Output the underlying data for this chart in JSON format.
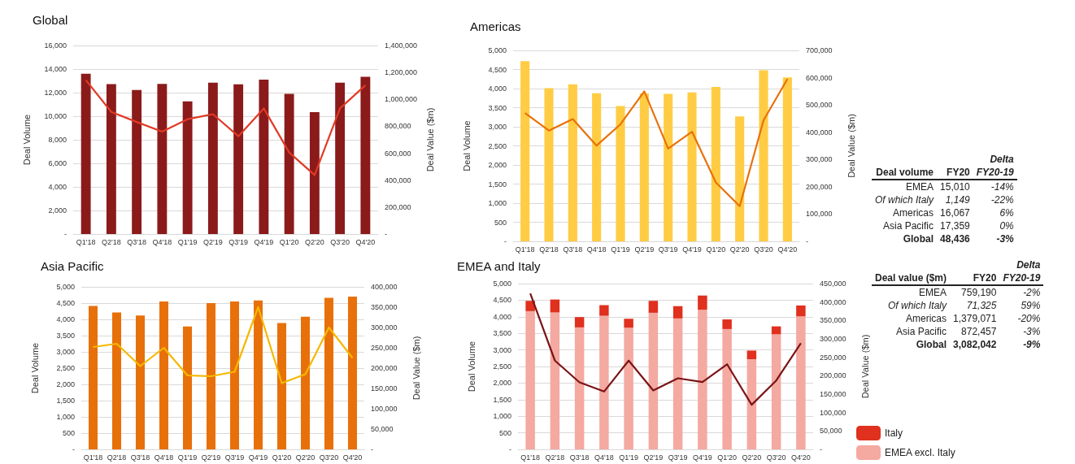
{
  "chart_data": [
    {
      "type": "bar",
      "title": "Global",
      "categories": [
        "Q1'18",
        "Q2'18",
        "Q3'18",
        "Q4'18",
        "Q1'19",
        "Q2'19",
        "Q3'19",
        "Q4'19",
        "Q1'20",
        "Q2'20",
        "Q3'20",
        "Q4'20"
      ],
      "ylabel": "Deal Volume",
      "y2label": "Deal Value ($m)",
      "ylim": [
        0,
        16000
      ],
      "yticks": [
        {
          "value": 0,
          "label": "-"
        },
        {
          "value": 2000,
          "label": "2,000"
        },
        {
          "value": 4000,
          "label": "4,000"
        },
        {
          "value": 6000,
          "label": "6,000"
        },
        {
          "value": 8000,
          "label": "8,000"
        },
        {
          "value": 10000,
          "label": "10,000"
        },
        {
          "value": 12000,
          "label": "12,000"
        },
        {
          "value": 14000,
          "label": "14,000"
        },
        {
          "value": 16000,
          "label": "16,000"
        }
      ],
      "y2lim": [
        0,
        1400000
      ],
      "y2ticks": [
        {
          "value": 0,
          "label": "-"
        },
        {
          "value": 200000,
          "label": "200,000"
        },
        {
          "value": 400000,
          "label": "400,000"
        },
        {
          "value": 600000,
          "label": "600,000"
        },
        {
          "value": 800000,
          "label": "800,000"
        },
        {
          "value": 1000000,
          "label": "1,000,000"
        },
        {
          "value": 1200000,
          "label": "1,200,000"
        },
        {
          "value": 1400000,
          "label": "1,400,000"
        }
      ],
      "grid": "y",
      "legend": false,
      "series": [
        {
          "type": "bar",
          "color": "#8b1a1a",
          "values": [
            13600,
            12730,
            12220,
            12750,
            11260,
            12850,
            12700,
            13110,
            11890,
            10350,
            12850,
            13350
          ]
        },
        {
          "type": "line",
          "axis": "y2",
          "color": "#e03a26",
          "values": [
            1143000,
            907000,
            832000,
            760000,
            853000,
            890000,
            726000,
            933000,
            606000,
            438000,
            933000,
            1105000
          ]
        }
      ]
    },
    {
      "type": "bar",
      "title": "Americas",
      "categories": [
        "Q1'18",
        "Q2'18",
        "Q3'18",
        "Q4'18",
        "Q1'19",
        "Q2'19",
        "Q3'19",
        "Q4'19",
        "Q1'20",
        "Q2'20",
        "Q3'20",
        "Q4'20"
      ],
      "ylabel": "Deal Volume",
      "y2label": "Deal Value ($m)",
      "ylim": [
        0,
        5000
      ],
      "yticks": [
        {
          "value": 0,
          "label": "-"
        },
        {
          "value": 500,
          "label": "500"
        },
        {
          "value": 1000,
          "label": "1,000"
        },
        {
          "value": 1500,
          "label": "1,500"
        },
        {
          "value": 2000,
          "label": "2,000"
        },
        {
          "value": 2500,
          "label": "2,500"
        },
        {
          "value": 3000,
          "label": "3,000"
        },
        {
          "value": 3500,
          "label": "3,500"
        },
        {
          "value": 4000,
          "label": "4,000"
        },
        {
          "value": 4500,
          "label": "4,500"
        },
        {
          "value": 5000,
          "label": "5,000"
        }
      ],
      "y2lim": [
        0,
        700000
      ],
      "y2ticks": [
        {
          "value": 0,
          "label": "-"
        },
        {
          "value": 100000,
          "label": "100,000"
        },
        {
          "value": 200000,
          "label": "200,000"
        },
        {
          "value": 300000,
          "label": "300,000"
        },
        {
          "value": 400000,
          "label": "400,000"
        },
        {
          "value": 500000,
          "label": "500,000"
        },
        {
          "value": 600000,
          "label": "600,000"
        },
        {
          "value": 700000,
          "label": "700,000"
        }
      ],
      "grid": "y",
      "legend": false,
      "series": [
        {
          "type": "bar",
          "color": "#ffcc44",
          "values": [
            4720,
            4010,
            4110,
            3880,
            3540,
            3870,
            3860,
            3900,
            4040,
            3270,
            4480,
            4290
          ]
        },
        {
          "type": "line",
          "axis": "y2",
          "color": "#e8710a",
          "values": [
            470000,
            406000,
            448000,
            351000,
            429000,
            550000,
            340000,
            402000,
            216000,
            129000,
            444000,
            595000
          ]
        }
      ]
    },
    {
      "type": "bar",
      "title": "Asia Pacific",
      "categories": [
        "Q1'18",
        "Q2'18",
        "Q3'18",
        "Q4'18",
        "Q1'19",
        "Q2'19",
        "Q3'19",
        "Q4'19",
        "Q1'20",
        "Q2'20",
        "Q3'20",
        "Q4'20"
      ],
      "ylabel": "Deal Volume",
      "y2label": "Deal Value ($m)",
      "ylim": [
        0,
        5000
      ],
      "yticks": [
        {
          "value": 0,
          "label": "-"
        },
        {
          "value": 500,
          "label": "500"
        },
        {
          "value": 1000,
          "label": "1,000"
        },
        {
          "value": 1500,
          "label": "1,500"
        },
        {
          "value": 2000,
          "label": "2,000"
        },
        {
          "value": 2500,
          "label": "2,500"
        },
        {
          "value": 3000,
          "label": "3,000"
        },
        {
          "value": 3500,
          "label": "3,500"
        },
        {
          "value": 4000,
          "label": "4,000"
        },
        {
          "value": 4500,
          "label": "4,500"
        },
        {
          "value": 5000,
          "label": "5,000"
        }
      ],
      "y2lim": [
        0,
        400000
      ],
      "y2ticks": [
        {
          "value": 0,
          "label": "-"
        },
        {
          "value": 50000,
          "label": "50,000"
        },
        {
          "value": 100000,
          "label": "100,000"
        },
        {
          "value": 150000,
          "label": "150,000"
        },
        {
          "value": 200000,
          "label": "200,000"
        },
        {
          "value": 250000,
          "label": "250,000"
        },
        {
          "value": 300000,
          "label": "300,000"
        },
        {
          "value": 350000,
          "label": "350,000"
        },
        {
          "value": 400000,
          "label": "400,000"
        }
      ],
      "grid": "y",
      "legend": false,
      "series": [
        {
          "type": "bar",
          "color": "#e8700a",
          "values": [
            4410,
            4210,
            4120,
            4550,
            3780,
            4500,
            4550,
            4580,
            3890,
            4080,
            4660,
            4700
          ]
        },
        {
          "type": "line",
          "axis": "y2",
          "color": "#f5b800",
          "values": [
            252000,
            260000,
            205000,
            250000,
            182000,
            180000,
            191000,
            350000,
            163000,
            185000,
            300000,
            225000
          ]
        }
      ]
    },
    {
      "type": "bar",
      "title": "EMEA and Italy",
      "stacked": true,
      "categories": [
        "Q1'18",
        "Q2'18",
        "Q3'18",
        "Q4'18",
        "Q1'19",
        "Q2'19",
        "Q3'19",
        "Q4'19",
        "Q1'20",
        "Q2'20",
        "Q3'20",
        "Q4'20"
      ],
      "ylabel": "Deal Volume",
      "y2label": "Deal Value ($m)",
      "ylim": [
        0,
        5000
      ],
      "yticks": [
        {
          "value": 0,
          "label": "-"
        },
        {
          "value": 500,
          "label": "500"
        },
        {
          "value": 1000,
          "label": "1,000"
        },
        {
          "value": 1500,
          "label": "1,500"
        },
        {
          "value": 2000,
          "label": "2,000"
        },
        {
          "value": 2500,
          "label": "2,500"
        },
        {
          "value": 3000,
          "label": "3,000"
        },
        {
          "value": 3500,
          "label": "3,500"
        },
        {
          "value": 4000,
          "label": "4,000"
        },
        {
          "value": 4500,
          "label": "4,500"
        },
        {
          "value": 5000,
          "label": "5,000"
        }
      ],
      "y2lim": [
        0,
        450000
      ],
      "y2ticks": [
        {
          "value": 0,
          "label": "-"
        },
        {
          "value": 50000,
          "label": "50,000"
        },
        {
          "value": 100000,
          "label": "100,000"
        },
        {
          "value": 150000,
          "label": "150,000"
        },
        {
          "value": 200000,
          "label": "200,000"
        },
        {
          "value": 250000,
          "label": "250,000"
        },
        {
          "value": 300000,
          "label": "300,000"
        },
        {
          "value": 350000,
          "label": "350,000"
        },
        {
          "value": 400000,
          "label": "400,000"
        },
        {
          "value": 450000,
          "label": "450,000"
        }
      ],
      "grid": "y",
      "legend": "bottom right",
      "series": [
        {
          "type": "bar",
          "name": "EMEA excl. Italy",
          "color": "#f4a9a1",
          "values": [
            4170,
            4130,
            3680,
            4030,
            3670,
            4120,
            3950,
            4210,
            3630,
            2720,
            3470,
            4010
          ]
        },
        {
          "type": "bar",
          "name": "Italy",
          "color": "#e0301e",
          "values": [
            310,
            390,
            310,
            320,
            270,
            360,
            370,
            430,
            290,
            260,
            240,
            330
          ]
        },
        {
          "type": "line",
          "axis": "y2",
          "color": "#7b1416",
          "values": [
            423000,
            241000,
            182000,
            157000,
            241000,
            160000,
            193000,
            183000,
            231000,
            121000,
            187000,
            288000
          ]
        }
      ]
    },
    {
      "type": "other",
      "annotations": [
        "Delta",
        "Deal volume",
        "FY20",
        "FY20-19",
        "EMEA",
        "15,010",
        "-14%",
        "Of which Italy",
        "1,149",
        "-22%",
        "Americas",
        "16,067",
        "6%",
        "Asia Pacific",
        "17,359",
        "0%",
        "Global",
        "48,436",
        "-3%"
      ]
    },
    {
      "type": "other",
      "annotations": [
        "Delta",
        "Deal value ($m)",
        "FY20",
        "FY20-19",
        "EMEA",
        "759,190",
        "-2%",
        "Of which Italy",
        "71,325",
        "59%",
        "Americas",
        "1,379,071",
        "-20%",
        "Asia Pacific",
        "872,457",
        "-3%",
        "Global",
        "3,082,042",
        "-9%"
      ]
    }
  ]
}
